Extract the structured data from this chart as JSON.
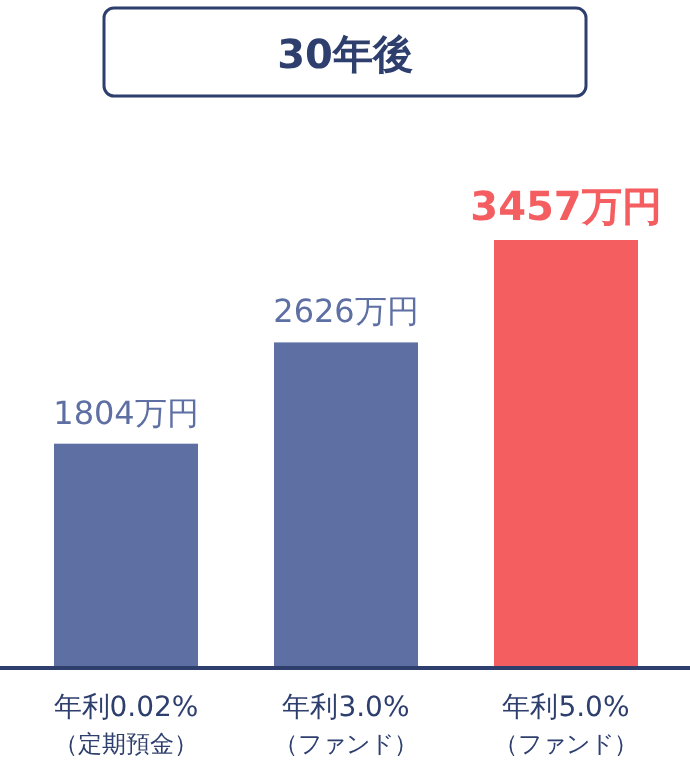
{
  "chart_data": {
    "type": "bar",
    "title": "30年後",
    "categories": [
      "年利0.02%\n（定期預金）",
      "年利3.0%\n（ファンド）",
      "年利5.0%\n（ファンド）"
    ],
    "values": [
      1804,
      2626,
      3457
    ],
    "colors": [
      "#5e6fa3",
      "#5e6fa3",
      "#f45e60"
    ],
    "value_labels": [
      "1804万円",
      "2626万円",
      "3457万円"
    ]
  }
}
